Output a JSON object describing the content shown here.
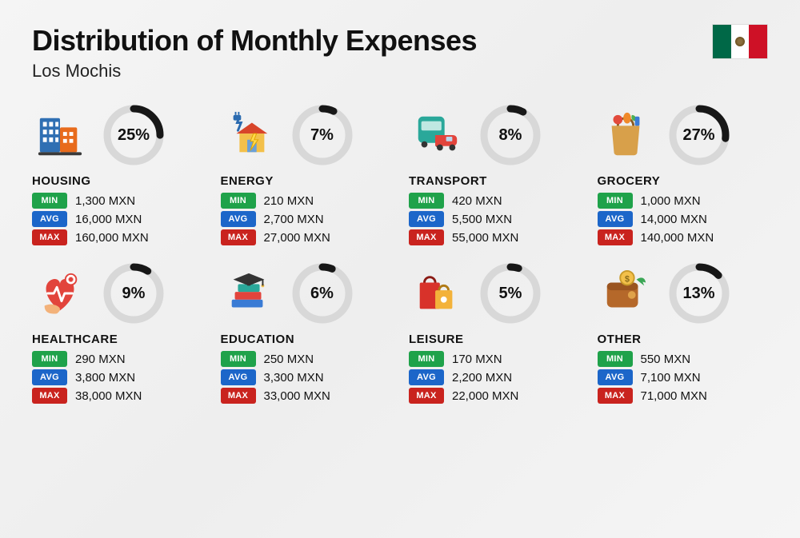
{
  "title": "Distribution of Monthly Expenses",
  "subtitle": "Los Mochis",
  "flag": {
    "left": "#006847",
    "mid": "#ffffff",
    "right": "#ce1126"
  },
  "labels": {
    "min": "MIN",
    "avg": "AVG",
    "max": "MAX"
  },
  "pill_colors": {
    "min": "#1fa24a",
    "avg": "#1c66c9",
    "max": "#c9231e"
  },
  "ring": {
    "track_color": "#d8d8d8",
    "progress_color": "#171717",
    "stroke_width": 9,
    "radius": 33
  },
  "currency_suffix": " MXN",
  "categories": [
    {
      "key": "housing",
      "name": "HOUSING",
      "pct": 25,
      "pct_label": "25%",
      "min": "1,300 MXN",
      "avg": "16,000 MXN",
      "max": "160,000 MXN"
    },
    {
      "key": "energy",
      "name": "ENERGY",
      "pct": 7,
      "pct_label": "7%",
      "min": "210 MXN",
      "avg": "2,700 MXN",
      "max": "27,000 MXN"
    },
    {
      "key": "transport",
      "name": "TRANSPORT",
      "pct": 8,
      "pct_label": "8%",
      "min": "420 MXN",
      "avg": "5,500 MXN",
      "max": "55,000 MXN"
    },
    {
      "key": "grocery",
      "name": "GROCERY",
      "pct": 27,
      "pct_label": "27%",
      "min": "1,000 MXN",
      "avg": "14,000 MXN",
      "max": "140,000 MXN"
    },
    {
      "key": "healthcare",
      "name": "HEALTHCARE",
      "pct": 9,
      "pct_label": "9%",
      "min": "290 MXN",
      "avg": "3,800 MXN",
      "max": "38,000 MXN"
    },
    {
      "key": "education",
      "name": "EDUCATION",
      "pct": 6,
      "pct_label": "6%",
      "min": "250 MXN",
      "avg": "3,300 MXN",
      "max": "33,000 MXN"
    },
    {
      "key": "leisure",
      "name": "LEISURE",
      "pct": 5,
      "pct_label": "5%",
      "min": "170 MXN",
      "avg": "2,200 MXN",
      "max": "22,000 MXN"
    },
    {
      "key": "other",
      "name": "OTHER",
      "pct": 13,
      "pct_label": "13%",
      "min": "550 MXN",
      "avg": "7,100 MXN",
      "max": "71,000 MXN"
    }
  ]
}
